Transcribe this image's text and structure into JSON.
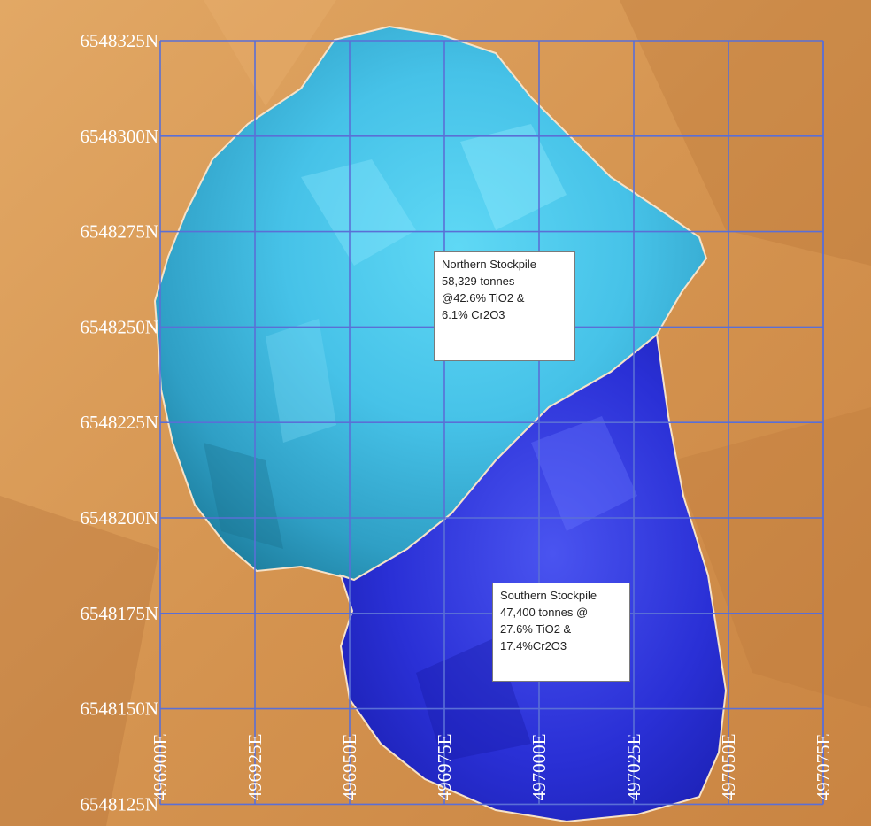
{
  "grid": {
    "northings": [
      "6548325N",
      "6548300N",
      "6548275N",
      "6548250N",
      "6548225N",
      "6548200N",
      "6548175N",
      "6548150N",
      "6548125N"
    ],
    "eastings": [
      "496900E",
      "496925E",
      "496950E",
      "496975E",
      "497000E",
      "497025E",
      "497050E",
      "497075E"
    ],
    "line_color": "#5a6fd6"
  },
  "stockpiles": {
    "northern": {
      "lines": [
        "Northern Stockpile",
        "58,329 tonnes",
        "@42.6% TiO2  &",
        "6.1% Cr2O3"
      ],
      "color": "#3fb3d6"
    },
    "southern": {
      "lines": [
        "Southern Stockpile",
        "47,400 tonnes @",
        "27.6% TiO2 &",
        "17.4%Cr2O3"
      ],
      "color": "#2a2fd8"
    }
  },
  "colors": {
    "terrain": "#d99a55",
    "terrain_dark": "#b9743a"
  }
}
